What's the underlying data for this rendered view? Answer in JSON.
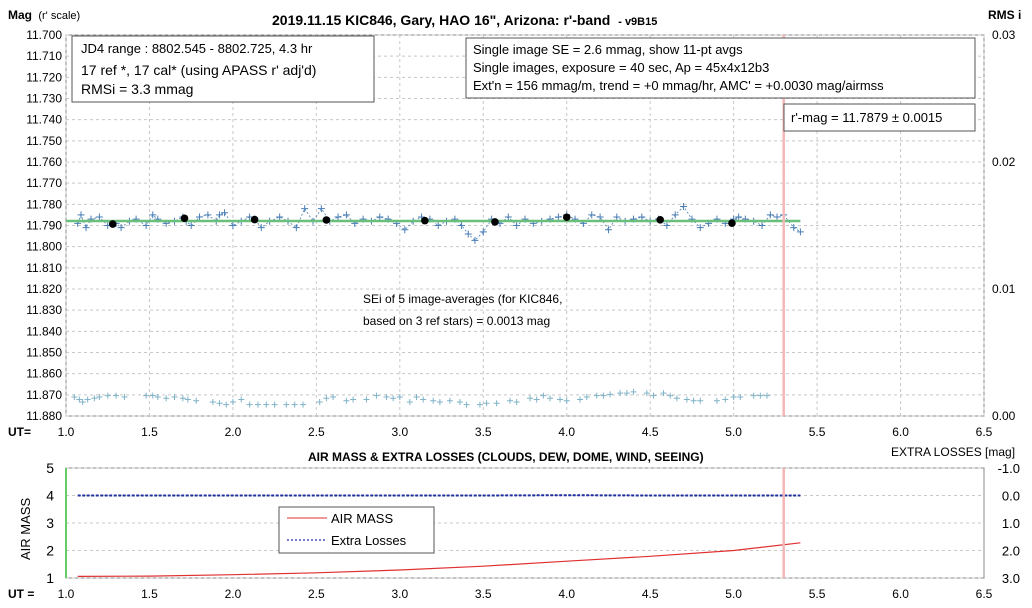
{
  "chart_data": [
    {
      "type": "scatter",
      "title": "2019.11.15 KIC846, Gary, HAO 16\", Arizona: r'-band",
      "title_suffix": "- v9B15",
      "ylabel": "Mag",
      "ylabel_suffix": "(r' scale)",
      "y2label": "RMS i",
      "xlabel": "UT=",
      "xlim": [
        1.0,
        6.5
      ],
      "ylim": [
        11.88,
        11.7
      ],
      "y2lim": [
        0.0,
        0.03
      ],
      "x_ticks": [
        "1.0",
        "1.5",
        "2.0",
        "2.5",
        "3.0",
        "3.5",
        "4.0",
        "4.5",
        "5.0",
        "5.5",
        "6.0",
        "6.5"
      ],
      "y_ticks": [
        "11.700",
        "11.710",
        "11.720",
        "11.730",
        "11.740",
        "11.750",
        "11.760",
        "11.770",
        "11.780",
        "11.790",
        "11.800",
        "11.810",
        "11.820",
        "11.830",
        "11.840",
        "11.850",
        "11.860",
        "11.870",
        "11.880"
      ],
      "y2_ticks": [
        "0.03",
        "0.02",
        "0.01",
        "0.00"
      ],
      "grid": true,
      "legend": "none",
      "colors": {
        "single": "#4a7eb5",
        "average": "#000000",
        "fit": "#6abf7b",
        "rms": "#7fb3c8",
        "marker": "#f4b6b6"
      },
      "vline_x": 5.3,
      "fit_y": 11.7879,
      "series": [
        {
          "kind": "single_images",
          "x": [
            1.07,
            1.09,
            1.12,
            1.15,
            1.2,
            1.25,
            1.3,
            1.33,
            1.38,
            1.42,
            1.48,
            1.52,
            1.55,
            1.6,
            1.65,
            1.7,
            1.72,
            1.75,
            1.8,
            1.85,
            1.9,
            1.92,
            1.95,
            2.0,
            2.05,
            2.1,
            2.13,
            2.17,
            2.22,
            2.28,
            2.33,
            2.38,
            2.43,
            2.48,
            2.53,
            2.58,
            2.63,
            2.68,
            2.73,
            2.78,
            2.83,
            2.88,
            2.93,
            2.98,
            3.03,
            3.08,
            3.13,
            3.18,
            3.23,
            3.28,
            3.33,
            3.37,
            3.41,
            3.45,
            3.5,
            3.55,
            3.6,
            3.65,
            3.7,
            3.75,
            3.8,
            3.85,
            3.9,
            3.95,
            4.0,
            4.05,
            4.1,
            4.15,
            4.2,
            4.25,
            4.3,
            4.35,
            4.4,
            4.45,
            4.5,
            4.55,
            4.6,
            4.65,
            4.7,
            4.75,
            4.8,
            4.85,
            4.9,
            4.95,
            5.0,
            5.03,
            5.07,
            5.12,
            5.17,
            5.22,
            5.26,
            5.3,
            5.36,
            5.4
          ],
          "y": [
            11.789,
            11.785,
            11.791,
            11.787,
            11.786,
            11.79,
            11.789,
            11.791,
            11.788,
            11.787,
            11.79,
            11.785,
            11.787,
            11.789,
            11.788,
            11.786,
            11.788,
            11.79,
            11.786,
            11.785,
            11.788,
            11.785,
            11.784,
            11.79,
            11.788,
            11.786,
            11.787,
            11.791,
            11.788,
            11.786,
            11.788,
            11.791,
            11.782,
            11.788,
            11.782,
            11.788,
            11.786,
            11.785,
            11.789,
            11.787,
            11.788,
            11.786,
            11.787,
            11.789,
            11.792,
            11.788,
            11.786,
            11.787,
            11.79,
            11.788,
            11.787,
            11.79,
            11.794,
            11.797,
            11.793,
            11.787,
            11.789,
            11.786,
            11.79,
            11.787,
            11.789,
            11.788,
            11.787,
            11.786,
            11.785,
            11.787,
            11.789,
            11.785,
            11.786,
            11.792,
            11.786,
            11.788,
            11.787,
            11.786,
            11.788,
            11.787,
            11.79,
            11.785,
            11.781,
            11.787,
            11.791,
            11.789,
            11.787,
            11.789,
            11.787,
            11.786,
            11.787,
            11.788,
            11.79,
            11.785,
            11.786,
            11.785,
            11.791,
            11.793
          ]
        },
        {
          "kind": "averages",
          "x": [
            1.28,
            1.71,
            2.13,
            2.56,
            3.15,
            3.57,
            4.0,
            4.56,
            4.99
          ],
          "y": [
            11.7893,
            11.7866,
            11.7872,
            11.7874,
            11.7877,
            11.7883,
            11.7861,
            11.7873,
            11.7889
          ]
        },
        {
          "kind": "rms",
          "x": [
            1.05,
            1.08,
            1.1,
            1.13,
            1.17,
            1.2,
            1.25,
            1.3,
            1.35,
            1.48,
            1.52,
            1.55,
            1.6,
            1.65,
            1.7,
            1.73,
            1.78,
            1.88,
            1.92,
            1.96,
            2.0,
            2.05,
            2.1,
            2.15,
            2.2,
            2.25,
            2.32,
            2.37,
            2.42,
            2.52,
            2.56,
            2.6,
            2.68,
            2.72,
            2.8,
            2.86,
            2.92,
            2.96,
            3.0,
            3.06,
            3.1,
            3.14,
            3.2,
            3.24,
            3.3,
            3.36,
            3.4,
            3.48,
            3.52,
            3.58,
            3.66,
            3.7,
            3.78,
            3.82,
            3.86,
            3.9,
            3.96,
            4.0,
            4.08,
            4.12,
            4.18,
            4.22,
            4.26,
            4.32,
            4.36,
            4.4,
            4.48,
            4.52,
            4.58,
            4.62,
            4.66,
            4.72,
            4.76,
            4.8,
            4.9,
            4.95,
            5.0,
            5.04,
            5.12,
            5.16,
            5.2
          ],
          "y": [
            0.0015,
            0.0013,
            0.0011,
            0.0013,
            0.0014,
            0.0015,
            0.0016,
            0.0016,
            0.0015,
            0.0016,
            0.0016,
            0.0015,
            0.0014,
            0.0015,
            0.0014,
            0.0013,
            0.0012,
            0.0011,
            0.001,
            0.0009,
            0.0011,
            0.0013,
            0.0009,
            0.0009,
            0.0009,
            0.0009,
            0.0009,
            0.0009,
            0.0009,
            0.0011,
            0.0014,
            0.0015,
            0.0012,
            0.0013,
            0.0013,
            0.0016,
            0.0015,
            0.0014,
            0.0015,
            0.0011,
            0.0015,
            0.0013,
            0.0012,
            0.0011,
            0.0012,
            0.0011,
            0.0009,
            0.0009,
            0.001,
            0.001,
            0.0012,
            0.0011,
            0.0014,
            0.0013,
            0.0016,
            0.0014,
            0.0013,
            0.0012,
            0.0013,
            0.0015,
            0.0016,
            0.0016,
            0.0017,
            0.0018,
            0.0018,
            0.0019,
            0.0018,
            0.0016,
            0.0018,
            0.0016,
            0.0014,
            0.0013,
            0.0012,
            0.0012,
            0.0012,
            0.0013,
            0.0015,
            0.0015,
            0.0016,
            0.0016,
            0.0016
          ]
        }
      ],
      "annotations": {
        "jd_range": "JD4 range : 8802.545 - 8802.725,  4.3  hr",
        "ref_stars": "17 ref *, 17 cal* (using APASS r' adj'd)",
        "rmsi": "RMSi = 3.3 mmag",
        "se_line1": "Single image SE = 2.6 mmag, show  11-pt avgs",
        "se_line2": "Single images, exposure = 40 sec, Ap = 45x4x12b3",
        "se_line3": "Ext'n = 156 mmag/m, trend =  +0 mmag/hr, AMC' = +0.0030 mag/airmss",
        "rmag": "r'-mag = 11.7879 ± 0.0015",
        "sei_line1": "SEi of 5 image-averages (for KIC846,",
        "sei_line2": "based on 3 ref stars) = 0.0013 mag"
      }
    },
    {
      "type": "line",
      "title": "AIR MASS & EXTRA LOSSES (CLOUDS, DEW, DOME, WIND, SEEING)",
      "ylabel": "AIR MASS",
      "y2label": "EXTRA LOSSES [mag]",
      "xlabel": "UT =",
      "xlim": [
        1.0,
        6.5
      ],
      "ylim": [
        1,
        5
      ],
      "y2lim": [
        3.0,
        -1.0
      ],
      "x_ticks": [
        "1.0",
        "1.5",
        "2.0",
        "2.5",
        "3.0",
        "3.5",
        "4.0",
        "4.5",
        "5.0",
        "5.5",
        "6.0",
        "6.5"
      ],
      "y_ticks": [
        "5",
        "4",
        "3",
        "2",
        "1"
      ],
      "y2_ticks": [
        "-1.0",
        "0.0",
        "1.0",
        "2.0",
        "3.0"
      ],
      "grid": true,
      "legend": "center-left",
      "colors": {
        "airmass": "#e03030",
        "losses": "#1f2fa0",
        "marker": "#f4b6b6",
        "leftline": "#66cc66"
      },
      "vline_x": 5.3,
      "series": [
        {
          "name": "AIR MASS",
          "x": [
            1.07,
            1.5,
            2.0,
            2.5,
            3.0,
            3.5,
            4.0,
            4.5,
            5.0,
            5.4
          ],
          "y": [
            1.06,
            1.07,
            1.12,
            1.19,
            1.29,
            1.43,
            1.61,
            1.79,
            2.0,
            2.28
          ]
        },
        {
          "name": "Extra Losses",
          "x": [
            1.07,
            1.5,
            2.0,
            2.5,
            3.0,
            3.5,
            4.0,
            4.5,
            5.0,
            5.4
          ],
          "y": [
            0.0,
            0.0,
            0.0,
            0.0,
            0.0,
            0.0,
            -0.01,
            0.0,
            0.0,
            0.0
          ]
        }
      ]
    }
  ]
}
